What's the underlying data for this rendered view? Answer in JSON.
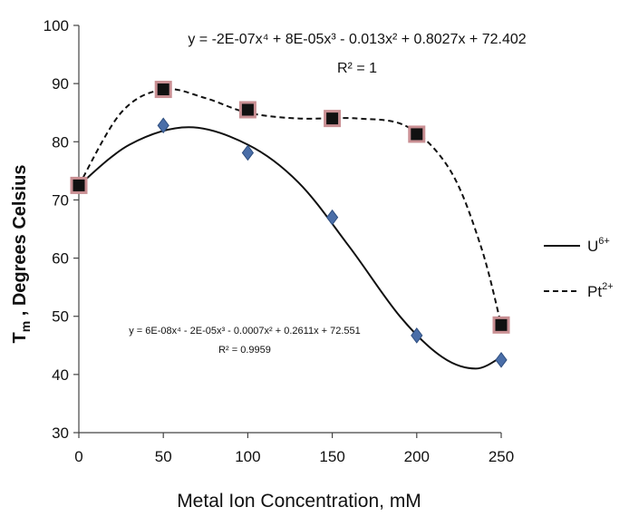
{
  "chart_data": {
    "type": "scatter",
    "title": "",
    "xlabel": "Metal Ion Concentration, mM",
    "ylabel": {
      "main": "T",
      "sub": "m",
      "rest": " , Degrees Celsius"
    },
    "xlim": [
      0,
      250
    ],
    "ylim": [
      30,
      100
    ],
    "x_ticks": [
      0,
      50,
      100,
      150,
      200,
      250
    ],
    "y_ticks": [
      30,
      40,
      50,
      60,
      70,
      80,
      90,
      100
    ],
    "grid": false,
    "legend_position": "right",
    "series": [
      {
        "name": {
          "base": "U",
          "sup": "6+"
        },
        "marker": "diamond",
        "marker_color": "#4a6ea8",
        "line_style": "solid",
        "x": [
          0,
          50,
          100,
          150,
          200,
          250
        ],
        "y": [
          72.5,
          82.8,
          78.1,
          67.0,
          46.7,
          42.5
        ],
        "trendline": {
          "type": "polynomial",
          "coefficients": [
            72.551,
            0.2611,
            -0.0007,
            -2e-05,
            6e-08
          ],
          "equation": "y = 6E-08x⁴ - 2E-05x³ - 0.0007x² + 0.2611x + 72.551",
          "r2": "R² = 0.9959"
        }
      },
      {
        "name": {
          "base": "Pt",
          "sup": "2+"
        },
        "marker": "square",
        "marker_color": "#111111",
        "marker_edge": "#c98f93",
        "line_style": "dashed",
        "x": [
          0,
          50,
          100,
          150,
          200,
          250
        ],
        "y": [
          72.5,
          89.0,
          85.5,
          84.0,
          81.3,
          48.5
        ],
        "trendline": {
          "type": "polynomial",
          "coefficients": [
            72.402,
            0.8027,
            -0.013,
            8e-05,
            -2e-07
          ],
          "equation": "y = -2E-07x⁴ + 8E-05x³ - 0.013x² + 0.8027x + 72.402",
          "r2": "R² = 1"
        }
      }
    ]
  }
}
